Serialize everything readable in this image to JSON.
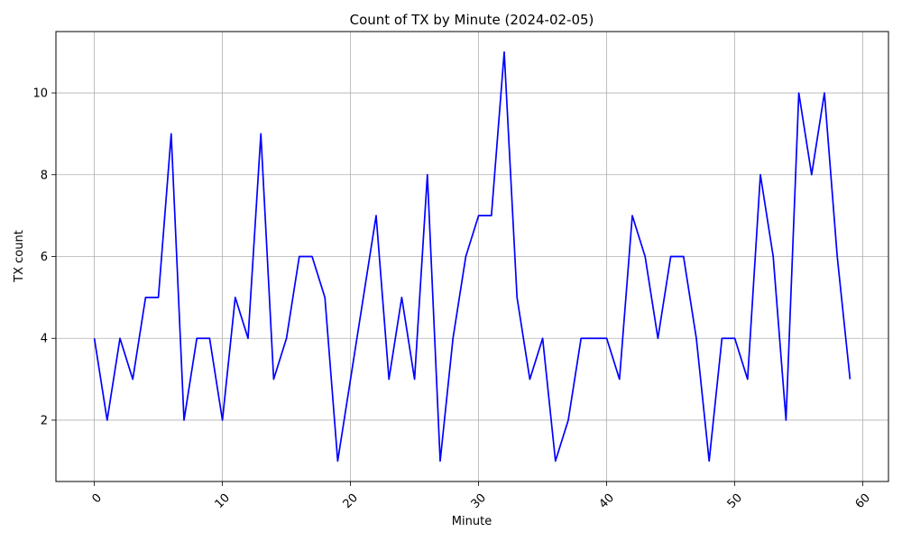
{
  "chart_data": {
    "type": "line",
    "title": "Count of TX by Minute (2024-02-05)",
    "xlabel": "Minute",
    "ylabel": "TX count",
    "xlim": [
      -3,
      62
    ],
    "ylim": [
      0.5,
      11.5
    ],
    "xticks": [
      0,
      10,
      20,
      30,
      40,
      50,
      60
    ],
    "yticks": [
      2,
      4,
      6,
      8,
      10
    ],
    "grid": true,
    "x_tick_rotation": 45,
    "series": [
      {
        "color": "#0000ff",
        "x": [
          0,
          1,
          2,
          3,
          4,
          5,
          6,
          7,
          8,
          9,
          10,
          11,
          12,
          13,
          14,
          15,
          16,
          17,
          18,
          19,
          20,
          21,
          22,
          23,
          24,
          25,
          26,
          27,
          28,
          29,
          30,
          31,
          32,
          33,
          34,
          35,
          36,
          37,
          38,
          39,
          40,
          41,
          42,
          43,
          44,
          45,
          46,
          47,
          48,
          49,
          50,
          51,
          52,
          53,
          54,
          55,
          56,
          57,
          58,
          59
        ],
        "values": [
          4,
          2,
          4,
          3,
          5,
          5,
          9,
          2,
          4,
          4,
          2,
          5,
          4,
          9,
          3,
          4,
          6,
          6,
          5,
          1,
          3,
          5,
          7,
          3,
          5,
          3,
          8,
          1,
          4,
          6,
          7,
          7,
          11,
          5,
          3,
          4,
          1,
          2,
          4,
          4,
          4,
          3,
          7,
          6,
          4,
          6,
          6,
          4,
          1,
          4,
          4,
          3,
          8,
          6,
          2,
          10,
          8,
          10,
          6,
          3
        ]
      }
    ]
  }
}
